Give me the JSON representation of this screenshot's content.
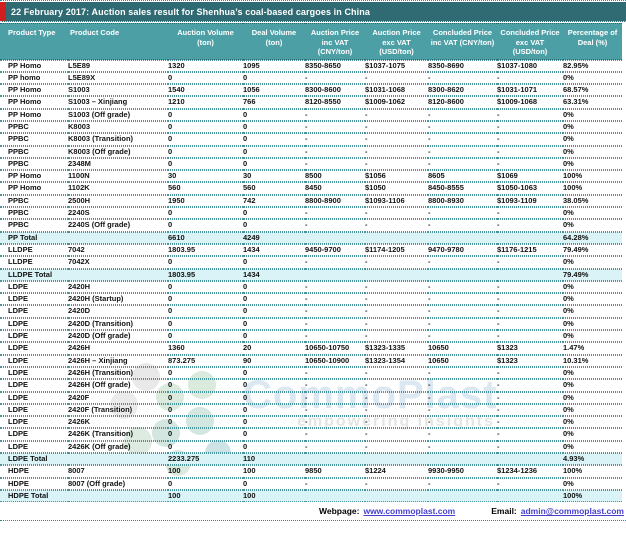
{
  "title": "22 February 2017: Auction sales result for Shenhua’s coal-based cargoes in China",
  "table": {
    "columns": [
      "Product Type",
      "Product Code",
      "Auction Volume (ton)",
      "Deal Volume (ton)",
      "Auction Price inc VAT (CNY/ton)",
      "Auction Price exc VAT (USD/ton)",
      "Concluded Price inc VAT (CNY/ton)",
      "Concluded Price exc VAT (USD/ton)",
      "Percentage of Deal (%)"
    ],
    "rows": [
      {
        "is_total": false,
        "cells": [
          "PP Homo",
          "L5E89",
          "1320",
          "1095",
          "8350-8650",
          "$1037-1075",
          "8350-8690",
          "$1037-1080",
          "82.95%"
        ]
      },
      {
        "is_total": false,
        "cells": [
          "PP homo",
          "L5E89X",
          "0",
          "0",
          "-",
          "-",
          "-",
          "-",
          "0%"
        ]
      },
      {
        "is_total": false,
        "cells": [
          "PP Homo",
          "S1003",
          "1540",
          "1056",
          "8300-8600",
          "$1031-1068",
          "8300-8620",
          "$1031-1071",
          "68.57%"
        ]
      },
      {
        "is_total": false,
        "cells": [
          "PP Homo",
          "S1003 – Xinjiang",
          "1210",
          "766",
          "8120-8550",
          "$1009-1062",
          "8120-8600",
          "$1009-1068",
          "63.31%"
        ]
      },
      {
        "is_total": false,
        "cells": [
          "PP Homo",
          "S1003 (Off grade)",
          "0",
          "0",
          "-",
          "-",
          "-",
          "-",
          "0%"
        ]
      },
      {
        "is_total": false,
        "cells": [
          "PPBC",
          "K8003",
          "0",
          "0",
          "-",
          "-",
          "-",
          "-",
          "0%"
        ]
      },
      {
        "is_total": false,
        "cells": [
          "PPBC",
          "K8003 (Transition)",
          "0",
          "0",
          "-",
          "-",
          "-",
          "-",
          "0%"
        ]
      },
      {
        "is_total": false,
        "cells": [
          "PPBC",
          "K8003 (Off grade)",
          "0",
          "0",
          "-",
          "-",
          "-",
          "-",
          "0%"
        ]
      },
      {
        "is_total": false,
        "cells": [
          "PPBC",
          "2348M",
          "0",
          "0",
          "-",
          "-",
          "-",
          "-",
          "0%"
        ]
      },
      {
        "is_total": false,
        "cells": [
          "PP Homo",
          "1100N",
          "30",
          "30",
          "8500",
          "$1056",
          "8605",
          "$1069",
          "100%"
        ]
      },
      {
        "is_total": false,
        "cells": [
          "PP Homo",
          "1102K",
          "560",
          "560",
          "8450",
          "$1050",
          "8450-8555",
          "$1050-1063",
          "100%"
        ]
      },
      {
        "is_total": false,
        "cells": [
          "PPBC",
          "2500H",
          "1950",
          "742",
          "8800-8900",
          "$1093-1106",
          "8800-8930",
          "$1093-1109",
          "38.05%"
        ]
      },
      {
        "is_total": false,
        "cells": [
          "PPBC",
          "2240S",
          "0",
          "0",
          "-",
          "-",
          "-",
          "-",
          "0%"
        ]
      },
      {
        "is_total": false,
        "cells": [
          "PPBC",
          "2240S (Off grade)",
          "0",
          "0",
          "-",
          "-",
          "-",
          "-",
          "0%"
        ]
      },
      {
        "is_total": true,
        "cells": [
          "PP Total",
          "",
          "6610",
          "4249",
          "",
          "",
          "",
          "",
          "64.28%"
        ]
      },
      {
        "is_total": false,
        "cells": [
          "LLDPE",
          "7042",
          "1803.95",
          "1434",
          "9450-9700",
          "$1174-1205",
          "9470-9780",
          "$1176-1215",
          "79.49%"
        ]
      },
      {
        "is_total": false,
        "cells": [
          "LLDPE",
          "7042X",
          "0",
          "0",
          "-",
          "-",
          "-",
          "-",
          "0%"
        ]
      },
      {
        "is_total": true,
        "cells": [
          "LLDPE Total",
          "",
          "1803.95",
          "1434",
          "",
          "",
          "",
          "",
          "79.49%"
        ]
      },
      {
        "is_total": false,
        "cells": [
          "LDPE",
          "2420H",
          "0",
          "0",
          "-",
          "-",
          "-",
          "-",
          "0%"
        ]
      },
      {
        "is_total": false,
        "cells": [
          "LDPE",
          "2420H (Startup)",
          "0",
          "0",
          "-",
          "-",
          "-",
          "-",
          "0%"
        ]
      },
      {
        "is_total": false,
        "cells": [
          "LDPE",
          "2420D",
          "0",
          "0",
          "-",
          "-",
          "-",
          "-",
          "0%"
        ]
      },
      {
        "is_total": false,
        "cells": [
          "LDPE",
          "2420D (Transition)",
          "0",
          "0",
          "-",
          "-",
          "-",
          "-",
          "0%"
        ]
      },
      {
        "is_total": false,
        "cells": [
          "LDPE",
          "2420D (Off grade)",
          "0",
          "0",
          "-",
          "-",
          "-",
          "-",
          "0%"
        ]
      },
      {
        "is_total": false,
        "cells": [
          "LDPE",
          "2426H",
          "1360",
          "20",
          "10650-10750",
          "$1323-1335",
          "10650",
          "$1323",
          "1.47%"
        ]
      },
      {
        "is_total": false,
        "cells": [
          "LDPE",
          "2426H – Xinjiang",
          "873.275",
          "90",
          "10650-10900",
          "$1323-1354",
          "10650",
          "$1323",
          "10.31%"
        ]
      },
      {
        "is_total": false,
        "cells": [
          "LDPE",
          "2426H (Transition)",
          "0",
          "0",
          "-",
          "-",
          "-",
          "-",
          "0%"
        ]
      },
      {
        "is_total": false,
        "cells": [
          "LDPE",
          "2426H (Off grade)",
          "0",
          "0",
          "-",
          "-",
          "-",
          "-",
          "0%"
        ]
      },
      {
        "is_total": false,
        "cells": [
          "LDPE",
          "2420F",
          "0",
          "0",
          "-",
          "-",
          "-",
          "-",
          "0%"
        ]
      },
      {
        "is_total": false,
        "cells": [
          "LDPE",
          "2420F (Transition)",
          "0",
          "0",
          "-",
          "-",
          "-",
          "-",
          "0%"
        ]
      },
      {
        "is_total": false,
        "cells": [
          "LDPE",
          "2426K",
          "0",
          "0",
          "-",
          "-",
          "-",
          "-",
          "0%"
        ]
      },
      {
        "is_total": false,
        "cells": [
          "LDPE",
          "2426K (Transition)",
          "0",
          "0",
          "-",
          "-",
          "-",
          "-",
          "0%"
        ]
      },
      {
        "is_total": false,
        "cells": [
          "LDPE",
          "2426K (Off grade)",
          "0",
          "0",
          "-",
          "-",
          "-",
          "-",
          "0%"
        ]
      },
      {
        "is_total": true,
        "cells": [
          "LDPE Total",
          "",
          "2233.275",
          "110",
          "",
          "",
          "",
          "",
          "4.93%"
        ]
      },
      {
        "is_total": false,
        "cells": [
          "HDPE",
          "8007",
          "100",
          "100",
          "9850",
          "$1224",
          "9930-9950",
          "$1234-1236",
          "100%"
        ]
      },
      {
        "is_total": false,
        "cells": [
          "HDPE",
          "8007 (Off grade)",
          "0",
          "0",
          "-",
          "-",
          "-",
          "-",
          "0%"
        ]
      },
      {
        "is_total": true,
        "cells": [
          "HDPE Total",
          "",
          "100",
          "100",
          "",
          "",
          "",
          "",
          "100%"
        ]
      }
    ]
  },
  "footer": {
    "webpage_label": "Webpage:",
    "webpage_url": "www.commoplast.com",
    "email_label": "Email:",
    "email_address": "admin@commoplast.com"
  },
  "watermark": {
    "brand": "CommoPlast",
    "tagline": "empowering insights"
  },
  "colors": {
    "title_bar": "#306b74",
    "red_accent": "#cf1f1f",
    "header": "#4d9fa6",
    "total_row": "#d9f3f7",
    "dotted_border": "#4a949c",
    "link": "#463fd0"
  }
}
